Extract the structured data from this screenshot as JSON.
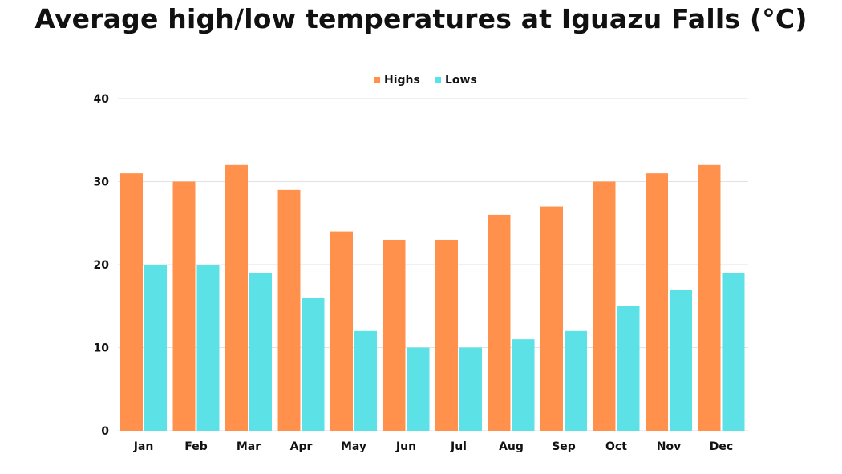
{
  "chart_data": {
    "type": "bar",
    "title": "Average high/low temperatures at Iguazu Falls (°C)",
    "xlabel": "",
    "ylabel": "",
    "categories": [
      "Jan",
      "Feb",
      "Mar",
      "Apr",
      "May",
      "Jun",
      "Jul",
      "Aug",
      "Sep",
      "Oct",
      "Nov",
      "Dec"
    ],
    "series": [
      {
        "name": "Highs",
        "color": "#FF914D",
        "values": [
          31,
          30,
          32,
          29,
          24,
          23,
          23,
          26,
          27,
          30,
          31,
          32
        ]
      },
      {
        "name": "Lows",
        "color": "#5CE1E6",
        "values": [
          20,
          20,
          19,
          16,
          12,
          10,
          10,
          11,
          12,
          15,
          17,
          19
        ]
      }
    ],
    "ylim": [
      0,
      40
    ],
    "yticks": [
      0,
      10,
      20,
      30,
      40
    ],
    "grid": true,
    "legend_position": "top-center"
  }
}
